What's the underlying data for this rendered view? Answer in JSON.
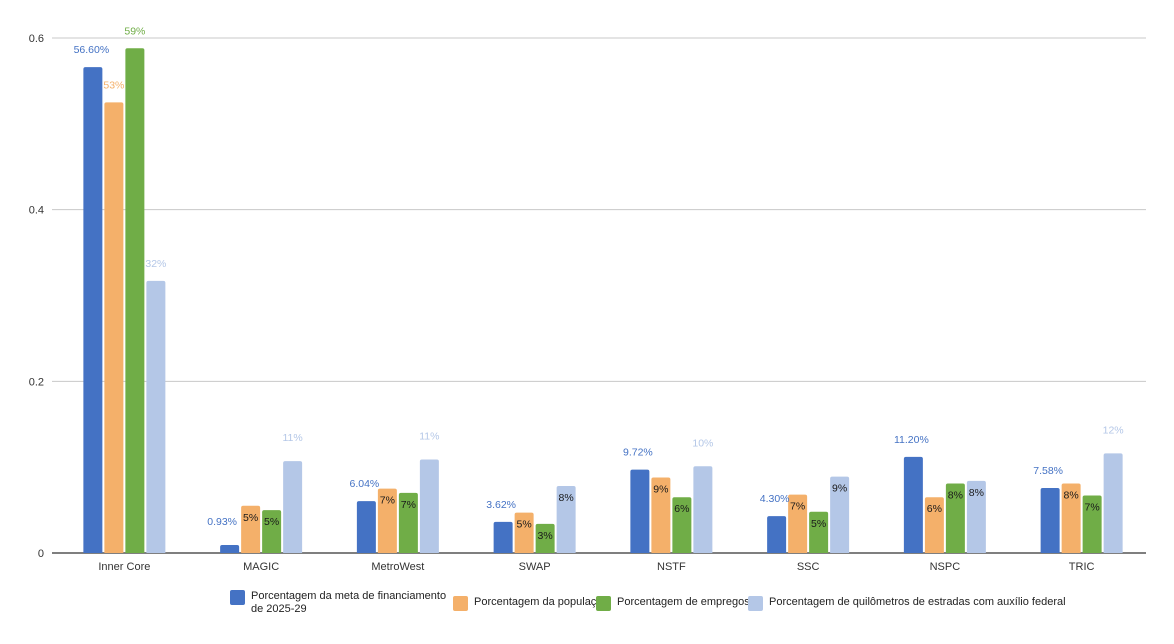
{
  "chart_data": {
    "type": "bar",
    "title": "",
    "xlabel": "",
    "ylabel": "",
    "ylim": [
      0,
      0.6
    ],
    "yticks": [
      "0",
      "0.2",
      "0.4",
      "0.6"
    ],
    "ytick_values": [
      0,
      0.2,
      0.4,
      0.6
    ],
    "grid": true,
    "legend_position": "bottom",
    "categories": [
      "Inner Core",
      "MAGIC",
      "MetroWest",
      "SWAP",
      "NSTF",
      "SSC",
      "NSPC",
      "TRIC"
    ],
    "series": [
      {
        "name": "Porcentagem da meta de financiamento de 2025-29",
        "name_lines": [
          "Porcentagem da meta de financiamento",
          "de 2025-29"
        ],
        "color": "#4472c4",
        "values": [
          0.566,
          0.0093,
          0.0604,
          0.0362,
          0.0972,
          0.043,
          0.112,
          0.0758
        ],
        "labels": [
          "56.60%",
          "0.93%",
          "6.04%",
          "3.62%",
          "9.72%",
          "4.30%",
          "11.20%",
          "7.58%"
        ],
        "label_position": "above-left"
      },
      {
        "name": "Porcentagem da população",
        "color": "#f4b06a",
        "values": [
          0.525,
          0.055,
          0.075,
          0.047,
          0.088,
          0.068,
          0.065,
          0.081
        ],
        "labels": [
          "53%",
          "5%",
          "7%",
          "5%",
          "9%",
          "7%",
          "6%",
          "8%"
        ],
        "label_position": "above-inside-small"
      },
      {
        "name": "Porcentagem de empregos",
        "color": "#70ad47",
        "values": [
          0.588,
          0.05,
          0.07,
          0.034,
          0.065,
          0.048,
          0.081,
          0.067
        ],
        "labels": [
          "59%",
          "5%",
          "7%",
          "3%",
          "6%",
          "5%",
          "8%",
          "7%"
        ],
        "label_position": "above-inside-small"
      },
      {
        "name": "Porcentagem de quilômetros de estradas com auxílio federal",
        "color": "#b4c7e7",
        "values": [
          0.317,
          0.107,
          0.109,
          0.078,
          0.101,
          0.089,
          0.084,
          0.116
        ],
        "labels": [
          "32%",
          "11%",
          "11%",
          "8%",
          "10%",
          "9%",
          "8%",
          "12%"
        ],
        "label_position": "above-inside-small"
      }
    ]
  }
}
